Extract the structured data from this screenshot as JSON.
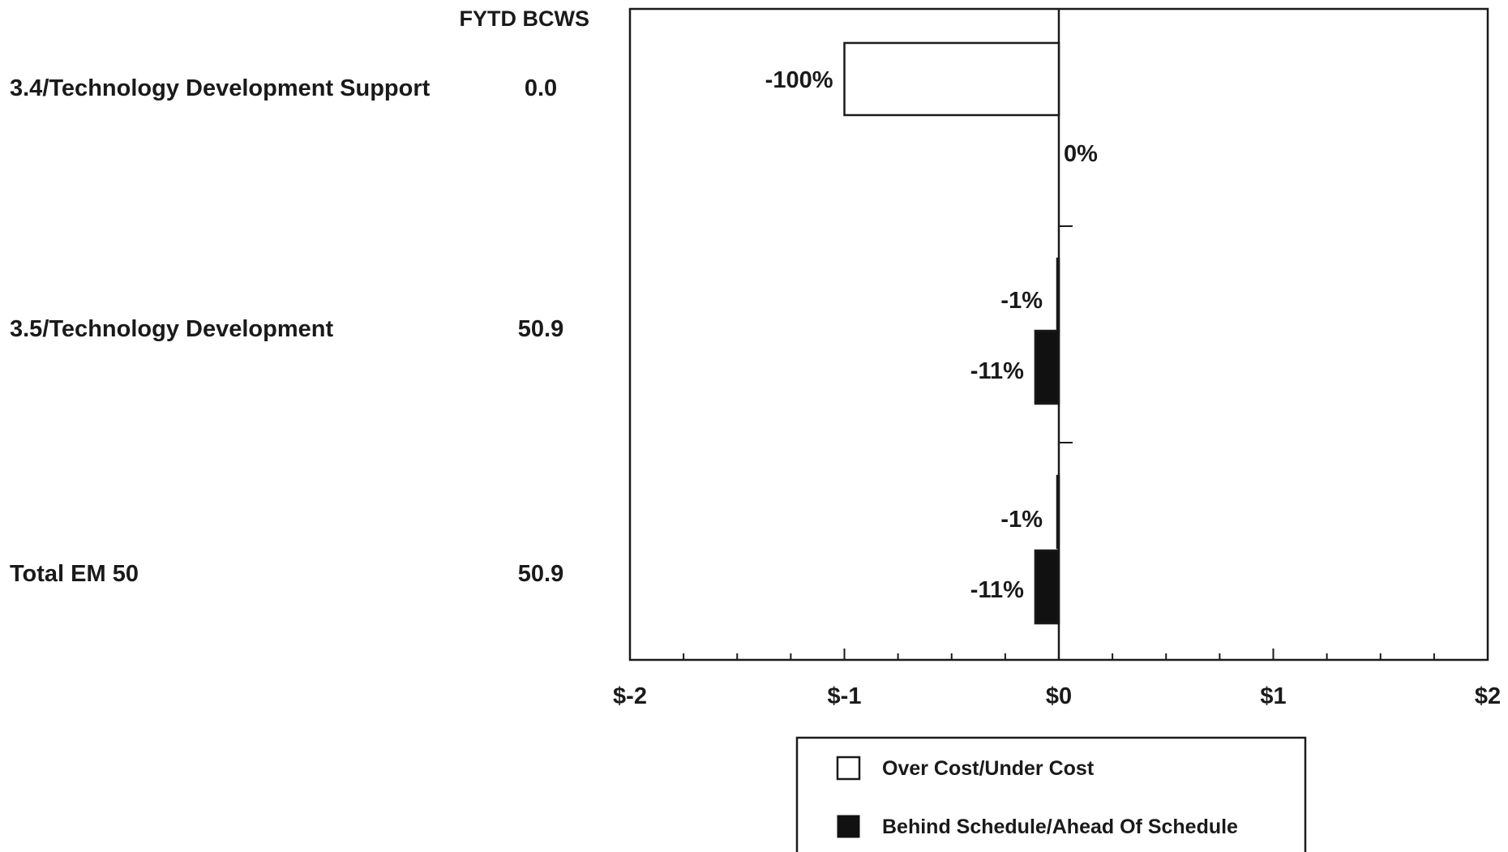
{
  "header": {
    "value_column_label": "FYTD BCWS"
  },
  "rows": [
    {
      "label": "3.4/Technology Development Support",
      "value": "0.0"
    },
    {
      "label": "3.5/Technology Development",
      "value": "50.9"
    },
    {
      "label": "Total EM 50",
      "value": "50.9"
    }
  ],
  "chart_data": {
    "type": "bar",
    "orientation": "horizontal",
    "categories": [
      "3.4/Technology Development Support",
      "3.5/Technology Development",
      "Total EM 50"
    ],
    "series": [
      {
        "name": "Over Cost/Under Cost",
        "fill": "#ffffff",
        "values": [
          -1.0,
          -0.005,
          -0.005
        ],
        "labels": [
          "-100%",
          "-1%",
          "-1%"
        ]
      },
      {
        "name": "Behind Schedule/Ahead Of Schedule",
        "fill": "#111111",
        "values": [
          0.0,
          -0.11,
          -0.11
        ],
        "labels": [
          "0%",
          "-11%",
          "-11%"
        ]
      }
    ],
    "xlim": [
      -2,
      2
    ],
    "x_tick_labels": [
      "$-2",
      "$-1",
      "$0",
      "$1",
      "$2"
    ],
    "minor_ticks_per_major": 4,
    "legend_placement": "bottom-center",
    "grid": false
  }
}
